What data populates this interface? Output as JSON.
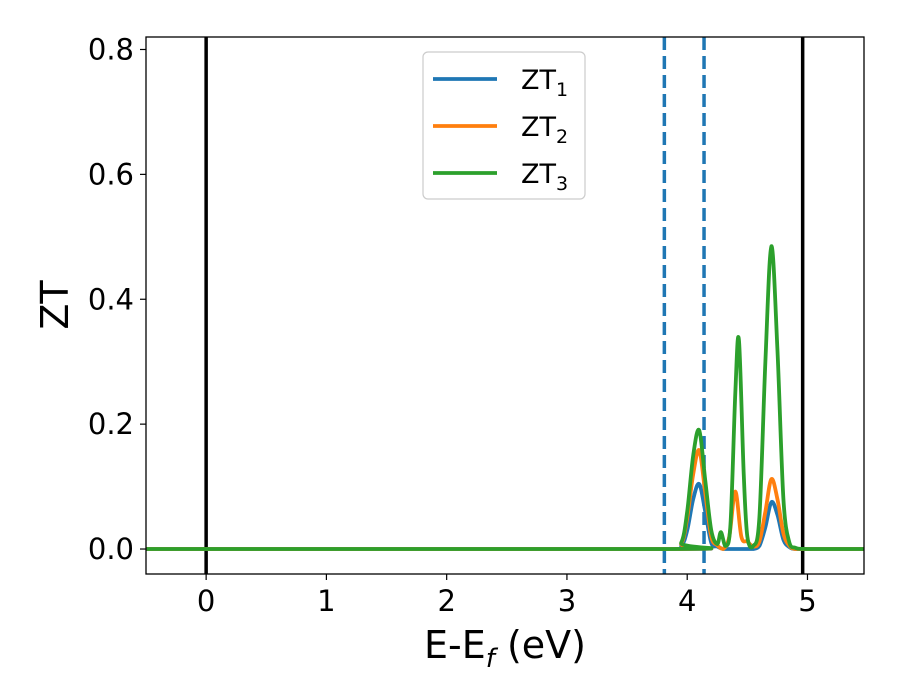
{
  "chart_data": {
    "type": "line",
    "xlabel": "E-E",
    "xlabel_sub": "f",
    "xlabel_suffix": " (eV)",
    "ylabel": "ZT",
    "xlim": [
      -0.5,
      5.47
    ],
    "ylim": [
      -0.04,
      0.82
    ],
    "xticks": [
      0,
      1,
      2,
      3,
      4,
      5
    ],
    "xtick_labels": [
      "0",
      "1",
      "2",
      "3",
      "4",
      "5"
    ],
    "yticks": [
      0.0,
      0.2,
      0.4,
      0.6,
      0.8
    ],
    "ytick_labels": [
      "0.0",
      "0.2",
      "0.4",
      "0.6",
      "0.8"
    ],
    "grid": false,
    "legend_position": "top-center",
    "vertical_lines": [
      {
        "x": 0.0,
        "style": "solid",
        "color": "#000000"
      },
      {
        "x": 4.96,
        "style": "solid",
        "color": "#000000"
      },
      {
        "x": 3.81,
        "style": "dashed",
        "color": "#1f77b4"
      },
      {
        "x": 4.14,
        "style": "dashed",
        "color": "#1f77b4"
      }
    ],
    "series": [
      {
        "name": "ZT",
        "name_sub": "1",
        "color": "#1f77b4",
        "x": [
          -0.5,
          3.85,
          3.95,
          4.0,
          4.05,
          4.1,
          4.15,
          4.2,
          4.25,
          4.3,
          4.35,
          4.4,
          4.45,
          4.5,
          4.55,
          4.6,
          4.65,
          4.7,
          4.75,
          4.8,
          4.85,
          4.9,
          5.0,
          5.47
        ],
        "y": [
          0.0,
          0.0,
          0.005,
          0.03,
          0.08,
          0.104,
          0.06,
          0.01,
          0.004,
          0.0,
          0.0,
          0.0,
          0.0,
          0.0,
          0.0,
          0.005,
          0.035,
          0.075,
          0.055,
          0.015,
          0.003,
          0.0,
          0.0,
          0.0
        ]
      },
      {
        "name": "ZT",
        "name_sub": "2",
        "color": "#ff7f0e",
        "x": [
          -0.5,
          3.85,
          3.95,
          4.0,
          4.05,
          4.1,
          4.15,
          4.2,
          4.25,
          4.3,
          4.35,
          4.4,
          4.45,
          4.5,
          4.55,
          4.6,
          4.65,
          4.7,
          4.75,
          4.8,
          4.85,
          4.9,
          5.0,
          5.47
        ],
        "y": [
          0.0,
          0.0,
          0.008,
          0.05,
          0.12,
          0.158,
          0.09,
          0.02,
          0.006,
          0.0,
          0.02,
          0.092,
          0.02,
          0.012,
          0.004,
          0.012,
          0.06,
          0.112,
          0.08,
          0.025,
          0.005,
          0.0,
          0.0,
          0.0
        ]
      },
      {
        "name": "ZT",
        "name_sub": "3",
        "color": "#2ca02c",
        "x": [
          -0.5,
          3.85,
          3.95,
          4.0,
          4.05,
          4.1,
          4.15,
          4.2,
          4.25,
          4.28,
          4.32,
          4.36,
          4.4,
          4.43,
          4.47,
          4.5,
          4.55,
          4.6,
          4.65,
          4.7,
          4.75,
          4.8,
          4.85,
          4.9,
          5.0,
          5.47
        ],
        "y": [
          0.0,
          0.0,
          0.01,
          0.06,
          0.15,
          0.19,
          0.11,
          0.03,
          0.008,
          0.027,
          0.005,
          0.04,
          0.25,
          0.335,
          0.12,
          0.02,
          0.005,
          0.05,
          0.3,
          0.485,
          0.32,
          0.08,
          0.01,
          0.002,
          0.0,
          0.0
        ]
      }
    ]
  }
}
